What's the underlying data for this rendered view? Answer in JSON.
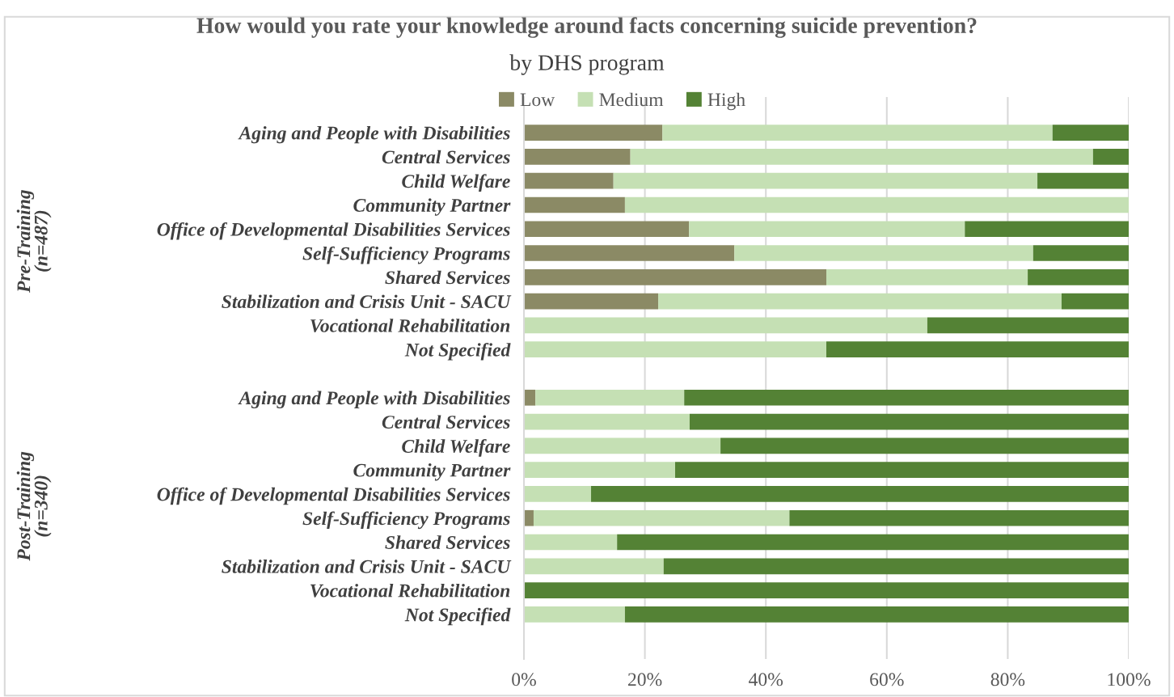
{
  "chart_data": {
    "type": "bar",
    "orientation": "horizontal",
    "stacked": true,
    "title": "How would you rate your knowledge around facts concerning suicide prevention?",
    "subtitle": "by DHS program",
    "categories": [
      "Aging and People with Disabilities",
      "Central Services",
      "Child Welfare",
      "Community Partner",
      "Office of Developmental Disabilities Services",
      "Self-Sufficiency Programs",
      "Shared Services",
      "Stabilization and Crisis Unit - SACU",
      "Vocational Rehabilitation",
      "Not Specified",
      null,
      "Aging and People with Disabilities",
      "Central Services",
      "Child Welfare",
      "Community Partner",
      "Office of Developmental Disabilities Services",
      "Self-Sufficiency Programs",
      "Shared Services",
      "Stabilization and Crisis Unit - SACU",
      "Vocational Rehabilitation",
      "Not Specified"
    ],
    "series": [
      {
        "name": "Low",
        "color": "#8b8a65",
        "values": [
          22.9,
          17.6,
          14.8,
          16.7,
          27.3,
          34.8,
          50,
          22.2,
          0,
          0,
          null,
          1.9,
          0,
          0,
          0,
          0,
          1.6,
          0,
          0,
          0,
          0
        ]
      },
      {
        "name": "Medium",
        "color": "#c5e0b4",
        "values": [
          64.5,
          76.5,
          70.1,
          83.3,
          45.6,
          49.4,
          33.3,
          66.7,
          66.7,
          50,
          null,
          24.6,
          27.4,
          32.5,
          25,
          11.1,
          42.3,
          15.4,
          23.1,
          0,
          16.7
        ]
      },
      {
        "name": "High",
        "color": "#548235",
        "values": [
          12.6,
          5.9,
          15.1,
          0,
          27.1,
          15.8,
          16.7,
          11.1,
          33.3,
          50,
          null,
          73.5,
          72.6,
          67.5,
          75,
          88.9,
          56.1,
          84.6,
          76.9,
          100,
          83.3
        ]
      }
    ],
    "xlim": [
      0,
      100
    ],
    "xticks": [
      {
        "value": 0,
        "label": "0%"
      },
      {
        "value": 20,
        "label": "20%"
      },
      {
        "value": 40,
        "label": "40%"
      },
      {
        "value": 60,
        "label": "60%"
      },
      {
        "value": 80,
        "label": "80%"
      },
      {
        "value": 100,
        "label": "100%"
      }
    ],
    "annotations": [
      "Pre-Training\n(n=487)",
      "Post-Training\n(n=340)"
    ],
    "grid": "x",
    "legend": "top"
  }
}
